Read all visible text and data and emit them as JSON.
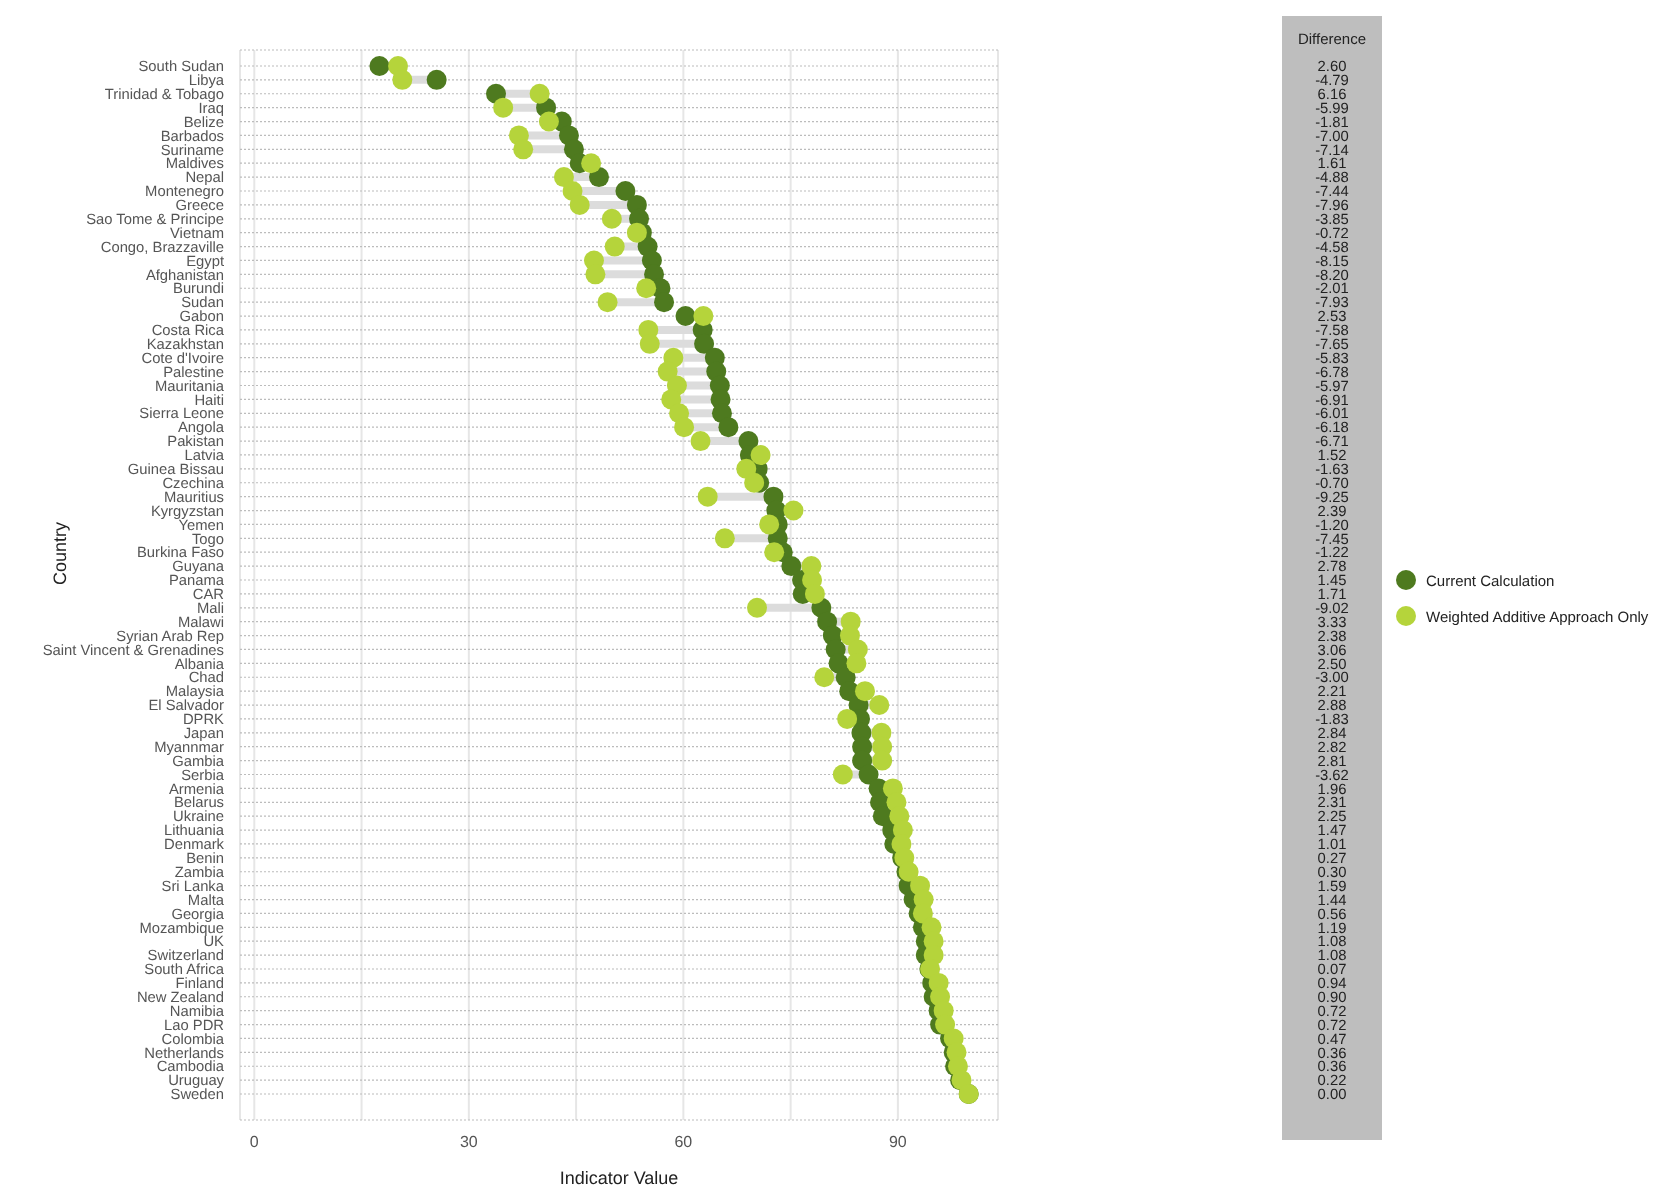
{
  "chart_data": [
    {
      "type": "scatter",
      "orientation": "horizontal",
      "xlabel": "Indicator Value",
      "ylabel": "Country",
      "categories": [
        "South Sudan",
        "Libya",
        "Trinidad & Tobago",
        "Iraq",
        "Belize",
        "Barbados",
        "Suriname",
        "Maldives",
        "Nepal",
        "Montenegro",
        "Greece",
        "Sao Tome & Principe",
        "Vietnam",
        "Congo, Brazzaville",
        "Egypt",
        "Afghanistan",
        "Burundi",
        "Sudan",
        "Gabon",
        "Costa Rica",
        "Kazakhstan",
        "Cote d'Ivoire",
        "Palestine",
        "Mauritania",
        "Haiti",
        "Sierra Leone",
        "Angola",
        "Pakistan",
        "Latvia",
        "Guinea Bissau",
        "Czechina",
        "Mauritius",
        "Kyrgyzstan",
        "Yemen",
        "Togo",
        "Burkina Faso",
        "Guyana",
        "Panama",
        "CAR",
        "Mali",
        "Malawi",
        "Syrian Arab Rep",
        "Saint Vincent & Grenadines",
        "Albania",
        "Chad",
        "Malaysia",
        "El Salvador",
        "DPRK",
        "Japan",
        "Myannmar",
        "Gambia",
        "Serbia",
        "Armenia",
        "Belarus",
        "Ukraine",
        "Lithuania",
        "Denmark",
        "Benin",
        "Zambia",
        "Sri Lanka",
        "Malta",
        "Georgia",
        "Mozambique",
        "UK",
        "Switzerland",
        "South Africa",
        "Finland",
        "New Zealand",
        "Namibia",
        "Lao PDR",
        "Colombia",
        "Netherlands",
        "Cambodia",
        "Uruguay",
        "Sweden"
      ],
      "series": [
        {
          "name": "Current Calculation",
          "color": "#4e7a1f",
          "values": [
            17.5,
            25.5,
            33.8,
            40.8,
            43.0,
            44.0,
            44.7,
            45.5,
            48.2,
            51.9,
            53.5,
            53.8,
            54.2,
            55.0,
            55.6,
            55.9,
            56.8,
            57.3,
            60.3,
            62.7,
            62.9,
            64.4,
            64.6,
            65.1,
            65.2,
            65.4,
            66.3,
            69.1,
            69.3,
            70.4,
            70.6,
            72.6,
            73.0,
            73.2,
            73.2,
            73.9,
            75.1,
            76.6,
            76.7,
            79.3,
            80.1,
            80.9,
            81.3,
            81.7,
            82.7,
            83.2,
            84.5,
            84.7,
            84.9,
            85.0,
            85.0,
            85.9,
            87.3,
            87.5,
            87.9,
            89.2,
            89.5,
            90.6,
            91.2,
            91.5,
            92.2,
            92.9,
            93.5,
            93.9,
            93.9,
            94.4,
            94.8,
            95.0,
            95.7,
            95.9,
            97.3,
            97.8,
            98.0,
            98.7,
            99.9
          ]
        },
        {
          "name": "Weighted Additive Approach Only",
          "color": "#b5d43b",
          "values": [
            20.1,
            20.7,
            39.9,
            34.8,
            41.2,
            37.0,
            37.6,
            47.1,
            43.3,
            44.5,
            45.5,
            50.0,
            53.5,
            50.4,
            47.5,
            47.7,
            54.8,
            49.4,
            62.8,
            55.1,
            55.3,
            58.6,
            57.8,
            59.1,
            58.3,
            59.4,
            60.1,
            62.4,
            70.8,
            68.8,
            69.9,
            63.4,
            75.4,
            72.0,
            65.8,
            72.7,
            77.9,
            78.0,
            78.4,
            70.3,
            83.4,
            83.3,
            84.4,
            84.2,
            79.7,
            85.4,
            87.4,
            82.9,
            87.7,
            87.8,
            87.8,
            82.3,
            89.3,
            89.8,
            90.2,
            90.7,
            90.5,
            90.9,
            91.5,
            93.1,
            93.6,
            93.5,
            94.7,
            95.0,
            95.0,
            94.5,
            95.7,
            95.9,
            96.4,
            96.6,
            97.8,
            98.2,
            98.4,
            98.9,
            99.9
          ]
        }
      ],
      "xlim": [
        -2,
        104
      ],
      "xticks": [
        0,
        {
          "value": 15,
          "label": null
        },
        30,
        {
          "value": 45,
          "label": null
        },
        60,
        {
          "value": 75,
          "label": null
        },
        90
      ],
      "grid": true,
      "legend": "right",
      "marker": "circle"
    },
    {
      "type": "other",
      "title": "Difference",
      "annotations": [
        "2.60",
        "-4.79",
        "6.16",
        "-5.99",
        "-1.81",
        "-7.00",
        "-7.14",
        "1.61",
        "-4.88",
        "-7.44",
        "-7.96",
        "-3.85",
        "-0.72",
        "-4.58",
        "-8.15",
        "-8.20",
        "-2.01",
        "-7.93",
        "2.53",
        "-7.58",
        "-7.65",
        "-5.83",
        "-6.78",
        "-5.97",
        "-6.91",
        "-6.01",
        "-6.18",
        "-6.71",
        "1.52",
        "-1.63",
        "-0.70",
        "-9.25",
        "2.39",
        "-1.20",
        "-7.45",
        "-1.22",
        "2.78",
        "1.45",
        "1.71",
        "-9.02",
        "3.33",
        "2.38",
        "3.06",
        "2.50",
        "-3.00",
        "2.21",
        "2.88",
        "-1.83",
        "2.84",
        "2.82",
        "2.81",
        "-3.62",
        "1.96",
        "2.31",
        "2.25",
        "1.47",
        "1.01",
        "0.27",
        "0.30",
        "1.59",
        "1.44",
        "0.56",
        "1.19",
        "1.08",
        "1.08",
        "0.07",
        "0.94",
        "0.90",
        "0.72",
        "0.72",
        "0.47",
        "0.36",
        "0.36",
        "0.22",
        "0.00"
      ]
    }
  ]
}
